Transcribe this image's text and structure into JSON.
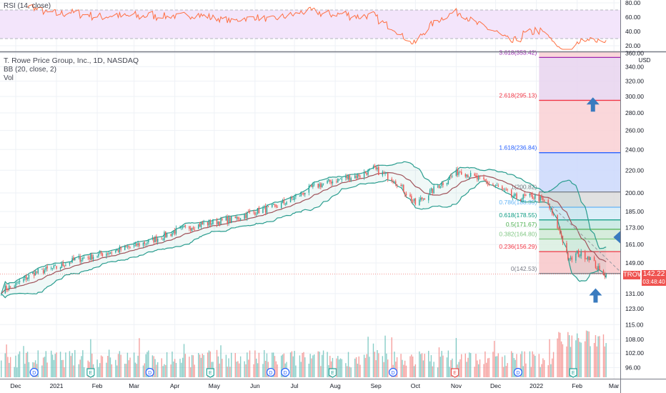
{
  "header": {
    "rsi_legend": "RSI (14, close)",
    "symbol_legend": "T. Rowe Price Group, Inc., 1D, NASDAQ",
    "bb_legend": "BB (20, close, 2)",
    "vol_legend": "Vol"
  },
  "price_tag": {
    "ticker": "TROW",
    "price": "142.22",
    "countdown": "03:48:40"
  },
  "chart_data": {
    "type": "candlestick",
    "symbol": "TROW",
    "interval": "1D",
    "currency": "USD",
    "price_scale": "log",
    "grid": true,
    "colors": {
      "up": "#26a69a",
      "down": "#ef5350",
      "bb_band": "#2a9d8f",
      "bb_basis": "#a0525a",
      "rsi": "#ff7043",
      "rsi_fill": "#f3e5fb",
      "arrow": "#3a7bbf"
    },
    "price_ticks": [
      "360.00",
      "340.00",
      "320.00",
      "300.00",
      "280.00",
      "260.00",
      "240.00",
      "220.00",
      "200.00",
      "185.00",
      "173.00",
      "161.00",
      "149.00",
      "131.00",
      "123.00",
      "115.00",
      "108.00",
      "102.00",
      "96.00"
    ],
    "rsi_ticks": [
      "80.00",
      "60.00",
      "40.00",
      "20.00"
    ],
    "rsi_bands": [
      30,
      70
    ],
    "x_ticks": [
      {
        "label": "Dec",
        "date": "2020-12-01"
      },
      {
        "label": "2021",
        "date": "2021-01-01"
      },
      {
        "label": "Feb",
        "date": "2021-02-01"
      },
      {
        "label": "Mar",
        "date": "2021-03-01"
      },
      {
        "label": "Apr",
        "date": "2021-04-01"
      },
      {
        "label": "May",
        "date": "2021-05-01"
      },
      {
        "label": "Jun",
        "date": "2021-06-01"
      },
      {
        "label": "Jul",
        "date": "2021-07-01"
      },
      {
        "label": "Aug",
        "date": "2021-08-01"
      },
      {
        "label": "Sep",
        "date": "2021-09-01"
      },
      {
        "label": "Oct",
        "date": "2021-10-01"
      },
      {
        "label": "Nov",
        "date": "2021-11-01"
      },
      {
        "label": "Dec",
        "date": "2021-12-01"
      },
      {
        "label": "2022",
        "date": "2022-01-01"
      },
      {
        "label": "Feb",
        "date": "2022-02-01"
      },
      {
        "label": "Mar",
        "date": "2022-03-01"
      }
    ],
    "approx_closes": [
      [
        "2020-11-20",
        133
      ],
      [
        "2020-12-01",
        136
      ],
      [
        "2020-12-15",
        143
      ],
      [
        "2021-01-01",
        146
      ],
      [
        "2021-01-15",
        151
      ],
      [
        "2021-02-01",
        154
      ],
      [
        "2021-02-15",
        157
      ],
      [
        "2021-03-01",
        160
      ],
      [
        "2021-03-15",
        164
      ],
      [
        "2021-04-01",
        170
      ],
      [
        "2021-04-15",
        174
      ],
      [
        "2021-05-01",
        177
      ],
      [
        "2021-05-15",
        179
      ],
      [
        "2021-06-01",
        185
      ],
      [
        "2021-06-15",
        188
      ],
      [
        "2021-07-01",
        196
      ],
      [
        "2021-07-15",
        205
      ],
      [
        "2021-08-01",
        211
      ],
      [
        "2021-08-20",
        216
      ],
      [
        "2021-08-30",
        221
      ],
      [
        "2021-09-15",
        212
      ],
      [
        "2021-10-01",
        191
      ],
      [
        "2021-10-15",
        203
      ],
      [
        "2021-11-04",
        220
      ],
      [
        "2021-11-15",
        213
      ],
      [
        "2021-12-01",
        206
      ],
      [
        "2021-12-15",
        196
      ],
      [
        "2022-01-01",
        197
      ],
      [
        "2022-01-10",
        190
      ],
      [
        "2022-01-20",
        167
      ],
      [
        "2022-01-26",
        150
      ],
      [
        "2022-02-01",
        155
      ],
      [
        "2022-02-10",
        153
      ],
      [
        "2022-02-18",
        144
      ],
      [
        "2022-02-23",
        142.22
      ]
    ],
    "last_price": 142.22,
    "fibonacci": {
      "start_date": "2022-01-03",
      "end_date": "2022-03-10",
      "levels": [
        {
          "ratio": "0",
          "price": 142.53,
          "label": "0(142.53)",
          "color": "#787b86",
          "fill": "#f8c7c9"
        },
        {
          "ratio": "0.236",
          "price": 156.29,
          "label": "0.236(156.29)",
          "color": "#f23645",
          "fill": "#d9efe0"
        },
        {
          "ratio": "0.382",
          "price": 164.8,
          "label": "0.382(164.80)",
          "color": "#81c784",
          "fill": "#cfe9d6"
        },
        {
          "ratio": "0.5",
          "price": 171.67,
          "label": "0.5(171.67)",
          "color": "#4caf50",
          "fill": "#c5e8e2"
        },
        {
          "ratio": "0.618",
          "price": 178.55,
          "label": "0.618(178.55)",
          "color": "#089981",
          "fill": "#d6ebf7"
        },
        {
          "ratio": "0.786",
          "price": 188.35,
          "label": "0.786(188.35)",
          "color": "#64b5f6",
          "fill": "#dcdcdc"
        },
        {
          "ratio": "1",
          "price": 200.82,
          "label": "1(200.82)",
          "color": "#787b86",
          "fill": "#cbd8fb"
        },
        {
          "ratio": "1.618",
          "price": 236.84,
          "label": "1.618(236.84)",
          "color": "#2962ff",
          "fill": "#f9d0d3"
        },
        {
          "ratio": "2.618",
          "price": 295.13,
          "label": "2.618(295.13)",
          "color": "#f23645",
          "fill": "#e7d3ef"
        },
        {
          "ratio": "3.618",
          "price": 353.42,
          "label": "3.618(353.42)",
          "color": "#9c27b0",
          "fill": "#f9d0d3"
        }
      ]
    },
    "annotations": [
      {
        "type": "arrow-up",
        "date": "2022-02-13",
        "price": 290
      },
      {
        "type": "arrow-left",
        "date": "2022-03-06",
        "price": 166
      },
      {
        "type": "arrow-up",
        "date": "2022-02-15",
        "price": 130
      }
    ],
    "events": [
      {
        "type": "D",
        "date": "2020-12-15"
      },
      {
        "type": "E",
        "date": "2021-01-27"
      },
      {
        "type": "D",
        "date": "2021-03-13"
      },
      {
        "type": "E",
        "date": "2021-04-28"
      },
      {
        "type": "D",
        "date": "2021-06-13"
      },
      {
        "type": "D",
        "date": "2021-06-24"
      },
      {
        "type": "E",
        "date": "2021-07-30"
      },
      {
        "type": "D",
        "date": "2021-09-14"
      },
      {
        "type": "E",
        "date": "2021-10-31",
        "color": "#ef5350"
      },
      {
        "type": "D",
        "date": "2021-12-18"
      },
      {
        "type": "E",
        "date": "2022-01-29"
      },
      {
        "type": "D",
        "date": "2022-03-16"
      }
    ]
  }
}
